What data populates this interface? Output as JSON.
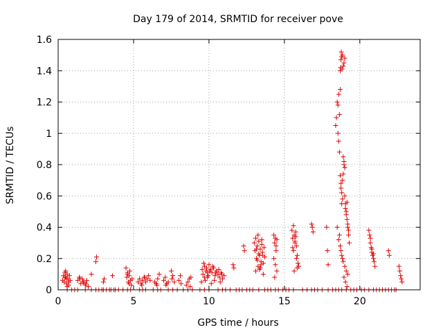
{
  "chart_data": {
    "type": "scatter",
    "title": "Day 179 of 2014, SRMTID for receiver pove",
    "xlabel": "GPS time / hours",
    "ylabel": "SRMTID / TECUs",
    "xlim": [
      0,
      24
    ],
    "ylim": [
      0,
      1.6
    ],
    "xticks": [
      0,
      5,
      10,
      15,
      20
    ],
    "xtick_labels": [
      "0",
      "5",
      "10",
      "15",
      "20"
    ],
    "yticks": [
      0,
      0.2,
      0.4,
      0.6,
      0.8,
      1.0,
      1.2,
      1.4,
      1.6
    ],
    "ytick_labels": [
      "0",
      "0.2",
      "0.4",
      "0.6",
      "0.8",
      "1",
      "1.2",
      "1.4",
      "1.6"
    ],
    "grid": true,
    "marker": "+",
    "colors": {
      "series": "#e00000",
      "grid": "#a0a0a0",
      "axes": "#000000"
    },
    "series": [
      {
        "name": "SRMTID",
        "x": [
          0.3,
          0.35,
          0.4,
          0.45,
          0.5,
          0.55,
          0.6,
          0.65,
          0.7,
          0.75,
          0.8,
          0.5,
          0.6,
          0.7,
          0.45,
          0.55,
          1.3,
          1.4,
          1.5,
          1.6,
          1.7,
          1.8,
          1.9,
          2.0,
          1.45,
          1.65,
          1.85,
          2.2,
          2.5,
          2.55,
          3.0,
          3.05,
          3.6,
          4.5,
          4.55,
          4.6,
          4.65,
          4.7,
          4.75,
          4.8,
          4.85,
          4.9,
          4.7,
          4.6,
          5.3,
          5.4,
          5.5,
          5.6,
          5.7,
          5.8,
          5.9,
          6.0,
          6.1,
          5.55,
          5.75,
          6.4,
          6.5,
          6.6,
          6.7,
          6.55,
          7.0,
          7.1,
          7.2,
          7.3,
          7.15,
          7.5,
          7.6,
          7.7,
          7.55,
          8.0,
          8.1,
          8.15,
          8.5,
          8.6,
          8.7,
          8.8,
          8.75,
          9.5,
          9.6,
          9.7,
          9.8,
          9.9,
          10.0,
          10.1,
          10.2,
          10.3,
          10.4,
          10.5,
          10.6,
          10.7,
          10.8,
          10.9,
          11.0,
          9.65,
          9.85,
          10.05,
          10.25,
          10.45,
          10.65,
          10.85,
          9.75,
          9.95,
          10.15,
          9.55,
          9.7,
          9.9,
          10.35,
          10.75,
          11.6,
          11.65,
          12.3,
          12.35,
          13.0,
          13.05,
          13.1,
          13.15,
          13.2,
          13.25,
          13.3,
          13.35,
          13.4,
          13.45,
          13.5,
          13.55,
          13.6,
          13.65,
          13.7,
          13.1,
          13.2,
          13.3,
          13.4,
          13.5,
          13.6,
          13.25,
          13.45,
          13.15,
          13.35,
          13.55,
          14.3,
          14.35,
          14.4,
          14.45,
          14.5,
          14.3,
          14.4,
          14.5,
          14.35,
          14.45,
          15.5,
          15.55,
          15.6,
          15.65,
          15.7,
          15.75,
          15.8,
          15.85,
          15.9,
          15.95,
          15.6,
          15.7,
          15.8,
          15.65,
          15.75,
          15.55,
          15.85,
          16.8,
          16.85,
          16.9,
          17.8,
          17.85,
          17.9,
          18.4,
          18.45,
          18.5,
          18.55,
          18.6,
          18.65,
          18.7,
          18.75,
          18.8,
          18.85,
          18.9,
          18.95,
          19.0,
          19.05,
          19.1,
          19.15,
          19.2,
          19.25,
          19.3,
          18.55,
          18.6,
          18.65,
          18.7,
          18.75,
          18.8,
          18.85,
          18.9,
          18.95,
          19.0,
          19.05,
          19.1,
          19.15,
          19.2,
          19.25,
          18.5,
          18.6,
          18.7,
          18.8,
          18.9,
          19.0,
          19.1,
          19.2,
          18.65,
          18.75,
          18.85,
          18.95,
          19.05,
          19.15,
          18.7,
          18.72,
          18.75,
          18.77,
          18.8,
          18.82,
          18.85,
          18.9,
          18.95,
          19.0,
          20.6,
          20.65,
          20.7,
          20.75,
          20.8,
          20.85,
          20.9,
          20.95,
          21.0,
          20.7,
          20.8,
          20.9,
          21.9,
          21.95,
          22.6,
          22.65,
          22.7,
          22.75,
          22.8
        ],
        "y": [
          0.06,
          0.09,
          0.05,
          0.11,
          0.08,
          0.04,
          0.1,
          0.07,
          0.03,
          0.09,
          0.06,
          0.12,
          0.02,
          0.05,
          0.08,
          0.07,
          0.06,
          0.08,
          0.04,
          0.07,
          0.05,
          0.03,
          0.06,
          0.02,
          0.07,
          0.05,
          0.04,
          0.1,
          0.18,
          0.21,
          0.05,
          0.07,
          0.09,
          0.14,
          0.08,
          0.11,
          0.05,
          0.09,
          0.12,
          0.06,
          0.03,
          0.07,
          0.04,
          0.1,
          0.05,
          0.07,
          0.04,
          0.06,
          0.08,
          0.05,
          0.07,
          0.09,
          0.06,
          0.03,
          0.08,
          0.05,
          0.04,
          0.07,
          0.1,
          0.03,
          0.06,
          0.08,
          0.04,
          0.05,
          0.03,
          0.12,
          0.09,
          0.05,
          0.07,
          0.06,
          0.09,
          0.04,
          0.03,
          0.05,
          0.07,
          0.08,
          0.02,
          0.05,
          0.1,
          0.15,
          0.12,
          0.08,
          0.16,
          0.13,
          0.11,
          0.14,
          0.09,
          0.12,
          0.1,
          0.08,
          0.11,
          0.07,
          0.09,
          0.17,
          0.14,
          0.12,
          0.15,
          0.11,
          0.13,
          0.1,
          0.06,
          0.09,
          0.04,
          0.13,
          0.08,
          0.11,
          0.06,
          0.05,
          0.16,
          0.14,
          0.28,
          0.25,
          0.3,
          0.25,
          0.33,
          0.2,
          0.28,
          0.15,
          0.31,
          0.22,
          0.26,
          0.18,
          0.29,
          0.24,
          0.17,
          0.27,
          0.21,
          0.12,
          0.19,
          0.23,
          0.14,
          0.32,
          0.1,
          0.35,
          0.16,
          0.26,
          0.13,
          0.22,
          0.35,
          0.3,
          0.33,
          0.28,
          0.32,
          0.2,
          0.16,
          0.12,
          0.08,
          0.25,
          0.38,
          0.33,
          0.41,
          0.35,
          0.3,
          0.37,
          0.28,
          0.22,
          0.17,
          0.15,
          0.25,
          0.31,
          0.2,
          0.12,
          0.34,
          0.27,
          0.14,
          0.42,
          0.4,
          0.37,
          0.4,
          0.25,
          0.16,
          1.05,
          1.1,
          1.2,
          1.18,
          1.25,
          0.88,
          0.73,
          0.65,
          0.55,
          0.7,
          0.85,
          0.8,
          0.6,
          0.55,
          0.5,
          0.45,
          0.4,
          0.35,
          0.3,
          1.0,
          0.95,
          1.12,
          1.28,
          0.68,
          0.62,
          0.58,
          0.74,
          0.82,
          0.78,
          0.52,
          0.48,
          0.56,
          0.42,
          0.38,
          0.4,
          0.32,
          0.28,
          0.22,
          0.18,
          0.15,
          0.12,
          0.1,
          0.35,
          0.25,
          0.2,
          0.08,
          0.05,
          0.02,
          1.4,
          1.42,
          1.47,
          1.52,
          1.49,
          1.41,
          1.5,
          1.43,
          1.45,
          1.48,
          0.38,
          0.35,
          0.3,
          0.27,
          0.24,
          0.22,
          0.2,
          0.18,
          0.15,
          0.33,
          0.26,
          0.23,
          0.25,
          0.22,
          0.15,
          0.12,
          0.09,
          0.07,
          0.05
        ],
        "zero_x": [
          0.6,
          0.9,
          1.1,
          1.3,
          1.8,
          2.2,
          2.5,
          2.7,
          2.9,
          3.0,
          3.2,
          3.4,
          3.5,
          3.7,
          3.8,
          4.0,
          4.3,
          4.6,
          4.8,
          5.4,
          5.6,
          5.8,
          6.3,
          6.6,
          6.8,
          7.3,
          7.6,
          7.9,
          8.3,
          8.6,
          8.9,
          9.4,
          9.7,
          10.0,
          10.6,
          10.9,
          11.1,
          11.4,
          11.8,
          12.0,
          12.2,
          12.5,
          12.7,
          12.9,
          13.3,
          13.7,
          13.9,
          14.1,
          14.4,
          14.6,
          14.9,
          15.1,
          15.3,
          15.6,
          16.2,
          16.5,
          16.8,
          17.0,
          17.2,
          17.5,
          17.9,
          18.2,
          18.4,
          18.6,
          18.8,
          19.1,
          19.4,
          19.6,
          19.8,
          20.1,
          20.3,
          20.6,
          20.9,
          21.1,
          21.3,
          21.5,
          21.7,
          21.9,
          22.1,
          22.3,
          22.4
        ]
      }
    ]
  }
}
